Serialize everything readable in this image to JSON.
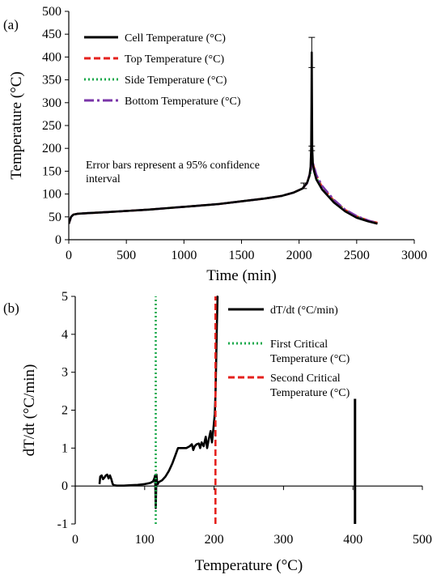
{
  "chart_data": [
    {
      "panel_label": "(a)",
      "type": "line",
      "xlabel": "Time (min)",
      "ylabel": "Temperature (°C)",
      "xlim": [
        0,
        3000
      ],
      "ylim": [
        0,
        500
      ],
      "x_ticks": [
        "0",
        "500",
        "1000",
        "1500",
        "2000",
        "2500",
        "3000"
      ],
      "y_ticks": [
        "0",
        "50",
        "100",
        "150",
        "200",
        "250",
        "300",
        "350",
        "400",
        "450",
        "500"
      ],
      "grid": false,
      "legend_position": "top-left",
      "annotation": [
        "Error bars represent a 95% confidence",
        "interval"
      ],
      "series": [
        {
          "name": "Cell Temperature (°C)",
          "color": "#000000",
          "style": "solid",
          "x": [
            0,
            20,
            40,
            80,
            150,
            300,
            500,
            700,
            900,
            1100,
            1300,
            1500,
            1700,
            1850,
            1950,
            2030,
            2070,
            2090,
            2100,
            2105,
            2108,
            2110,
            2112,
            2114,
            2120,
            2130,
            2150,
            2200,
            2300,
            2400,
            2500,
            2600,
            2680
          ],
          "y": [
            35,
            50,
            55,
            57,
            58,
            60,
            63,
            66,
            70,
            74,
            78,
            84,
            90,
            96,
            103,
            112,
            125,
            140,
            160,
            200,
            300,
            410,
            300,
            200,
            165,
            150,
            132,
            110,
            82,
            62,
            48,
            40,
            35
          ]
        },
        {
          "name": "Top Temperature (°C)",
          "color": "#e5211d",
          "style": "dashed",
          "x": [
            0,
            20,
            40,
            80,
            150,
            300,
            500,
            700,
            900,
            1100,
            1300,
            1500,
            1700,
            1850,
            1950,
            2030,
            2070,
            2100,
            2115,
            2130,
            2150,
            2200,
            2300,
            2400,
            2500,
            2600,
            2680
          ],
          "y": [
            35,
            50,
            55,
            57,
            58,
            60,
            63,
            66,
            70,
            74,
            78,
            84,
            90,
            96,
            103,
            112,
            124,
            150,
            170,
            158,
            140,
            115,
            86,
            65,
            51,
            42,
            37
          ]
        },
        {
          "name": "Side Temperature (°C)",
          "color": "#19a84a",
          "style": "dotted",
          "x": [
            0,
            20,
            40,
            80,
            150,
            300,
            500,
            700,
            900,
            1100,
            1300,
            1500,
            1700,
            1850,
            1950,
            2030,
            2070,
            2100,
            2115,
            2130,
            2150,
            2200,
            2300,
            2400,
            2500,
            2600,
            2680
          ],
          "y": [
            35,
            50,
            55,
            57,
            58,
            60,
            63,
            66,
            70,
            74,
            78,
            84,
            90,
            96,
            103,
            112,
            123,
            148,
            168,
            155,
            136,
            112,
            84,
            64,
            50,
            41,
            36
          ]
        },
        {
          "name": "Bottom Temperature (°C)",
          "color": "#7a35a8",
          "style": "dashdot",
          "x": [
            0,
            20,
            40,
            80,
            150,
            300,
            500,
            700,
            900,
            1100,
            1300,
            1500,
            1700,
            1850,
            1950,
            2030,
            2070,
            2100,
            2115,
            2130,
            2150,
            2200,
            2300,
            2400,
            2500,
            2600,
            2680
          ],
          "y": [
            35,
            50,
            55,
            57,
            58,
            60,
            63,
            66,
            70,
            74,
            78,
            84,
            90,
            96,
            103,
            112,
            124,
            152,
            172,
            160,
            142,
            118,
            88,
            66,
            52,
            42,
            36
          ]
        }
      ],
      "error_bars": [
        {
          "x": 2110,
          "y": 410,
          "low": 377,
          "high": 443
        },
        {
          "x": 2110,
          "y": 200,
          "low": 195,
          "high": 205
        },
        {
          "x": 2040,
          "y": 118,
          "low": 112,
          "high": 124
        }
      ]
    },
    {
      "panel_label": "(b)",
      "type": "line",
      "xlabel": "Temperature (°C)",
      "ylabel": "dT/dt (°C/min)",
      "xlim": [
        0,
        500
      ],
      "ylim": [
        -1,
        5
      ],
      "x_ticks": [
        "0",
        "100",
        "200",
        "300",
        "400",
        "500"
      ],
      "y_ticks": [
        "-1",
        "0",
        "1",
        "2",
        "3",
        "4",
        "5"
      ],
      "grid": false,
      "legend_position": "top-right",
      "series": [
        {
          "name": "dT/dt (°C/min)",
          "color": "#000000",
          "style": "solid",
          "x": [
            35,
            36,
            38,
            40,
            42,
            44,
            46,
            48,
            50,
            52,
            54,
            56,
            60,
            70,
            80,
            90,
            100,
            108,
            112,
            114,
            115,
            116,
            117,
            118,
            119,
            120,
            125,
            130,
            135,
            140,
            143,
            146,
            148,
            150,
            155,
            160,
            165,
            168,
            170,
            172,
            175,
            178,
            180,
            182,
            185,
            188,
            190,
            192,
            195,
            197,
            199,
            200,
            201,
            202,
            203,
            204,
            205,
            206
          ],
          "y": [
            0.05,
            0.25,
            0.28,
            0.18,
            0.22,
            0.28,
            0.3,
            0.2,
            0.28,
            0.18,
            0.05,
            0.02,
            0.01,
            0.01,
            0.02,
            0.03,
            0.05,
            0.08,
            0.12,
            0.2,
            0.28,
            -0.58,
            0.3,
            0.1,
            0.05,
            0.1,
            0.15,
            0.25,
            0.4,
            0.6,
            0.75,
            0.9,
            1.0,
            1.0,
            1.0,
            1.0,
            1.05,
            1.1,
            0.95,
            1.05,
            1.1,
            1.12,
            1.0,
            1.15,
            1.05,
            1.3,
            1.0,
            1.2,
            1.45,
            1.15,
            1.5,
            1.7,
            1.9,
            2.4,
            3.3,
            4.2,
            5.0,
            5.0
          ]
        },
        {
          "name": "First Critical Temperature (°C)",
          "color": "#19a84a",
          "style": "dotted",
          "x": [
            116,
            116
          ],
          "y": [
            -1,
            5
          ]
        },
        {
          "name": "Second Critical Temperature (°C)",
          "color": "#e5211d",
          "style": "dashed",
          "x": [
            202,
            202
          ],
          "y": [
            -1,
            5
          ]
        }
      ],
      "extra_marks": [
        {
          "x": 403,
          "y_from": -1,
          "y_to": 2.3,
          "color": "#000000"
        }
      ],
      "legend_labels": [
        [
          "dT/dt (°C/min)"
        ],
        [
          "First Critical",
          "Temperature (°C)"
        ],
        [
          "Second Critical",
          "Temperature (°C)"
        ]
      ]
    }
  ]
}
